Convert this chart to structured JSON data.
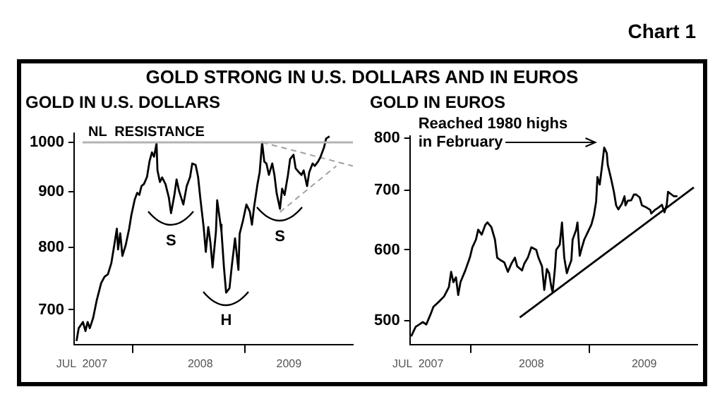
{
  "chart_data": [
    {
      "type": "other",
      "title": "GOLD STRONG IN U.S. DOLLARS AND IN EUROS",
      "annotations": [
        "Chart 1"
      ]
    },
    {
      "type": "line",
      "title": "GOLD IN U.S. DOLLARS",
      "log": "y",
      "marker": "none",
      "xlim": [
        "2007-06-25",
        "2009-12-17"
      ],
      "xticks": [
        {
          "value": "2007-07-20",
          "label": "JUL  2007"
        },
        {
          "value": "2008-01-01",
          "label": null
        },
        {
          "value": "2008-08-08",
          "label": "2008"
        },
        {
          "value": "2009-01-01",
          "label": null
        },
        {
          "value": "2009-05-23",
          "label": "2009"
        }
      ],
      "ylim": [
        650,
        1020
      ],
      "yticks": [
        700,
        800,
        900,
        1000
      ],
      "ref_lines": [
        {
          "axis": "y",
          "value": 1000,
          "label": "NL  RESISTANCE",
          "color": "#b4b4b4"
        }
      ],
      "annotations": [
        {
          "text": "S",
          "x": "2008-05-05",
          "y": 860
        },
        {
          "text": "H",
          "x": "2008-10-31",
          "y": 726
        },
        {
          "text": "S",
          "x": "2009-04-24",
          "y": 868
        }
      ],
      "series": [
        {
          "color": "#000000",
          "x": [
            "2007-07-03",
            "2007-07-10",
            "2007-07-24",
            "2007-08-01",
            "2007-08-08",
            "2007-08-15",
            "2007-08-26",
            "2007-09-06",
            "2007-09-21",
            "2007-10-02",
            "2007-10-13",
            "2007-10-24",
            "2007-11-04",
            "2007-11-11",
            "2007-11-15",
            "2007-11-22",
            "2007-11-29",
            "2007-12-10",
            "2007-12-21",
            "2007-12-28",
            "2008-01-08",
            "2008-01-16",
            "2008-01-23",
            "2008-01-30",
            "2008-02-07",
            "2008-02-17",
            "2008-02-25",
            "2008-03-04",
            "2008-03-11",
            "2008-03-19",
            "2008-03-22",
            "2008-03-30",
            "2008-04-06",
            "2008-04-17",
            "2008-04-28",
            "2008-05-05",
            "2008-05-16",
            "2008-05-23",
            "2008-05-31",
            "2008-06-07",
            "2008-06-14",
            "2008-06-25",
            "2008-07-06",
            "2008-07-13",
            "2008-07-24",
            "2008-08-01",
            "2008-08-08",
            "2008-08-19",
            "2008-08-26",
            "2008-09-03",
            "2008-09-10",
            "2008-09-17",
            "2008-09-28",
            "2008-10-02",
            "2008-10-13",
            "2008-10-16",
            "2008-10-24",
            "2008-10-31",
            "2008-11-11",
            "2008-11-18",
            "2008-11-29",
            "2008-12-10",
            "2008-12-14",
            "2008-12-25",
            "2009-01-05",
            "2009-01-16",
            "2009-01-23",
            "2009-01-30",
            "2009-02-10",
            "2009-02-17",
            "2009-02-25",
            "2009-03-04",
            "2009-03-11",
            "2009-03-19",
            "2009-03-30",
            "2009-04-06",
            "2009-04-13",
            "2009-04-24",
            "2009-05-01",
            "2009-05-09",
            "2009-05-20",
            "2009-05-27",
            "2009-06-07",
            "2009-06-14",
            "2009-06-25",
            "2009-07-03",
            "2009-07-10",
            "2009-07-21",
            "2009-07-28",
            "2009-08-08",
            "2009-08-15",
            "2009-08-26",
            "2009-09-03",
            "2009-09-14",
            "2009-09-21",
            "2009-10-02"
          ],
          "values": [
            655,
            673,
            682,
            669,
            682,
            673,
            688,
            713,
            741,
            751,
            755,
            773,
            808,
            832,
            796,
            824,
            785,
            804,
            832,
            856,
            885,
            898,
            894,
            911,
            915,
            929,
            960,
            979,
            970,
            998,
            942,
            919,
            928,
            915,
            889,
            860,
            894,
            924,
            902,
            889,
            876,
            911,
            929,
            956,
            953,
            929,
            889,
            835,
            792,
            835,
            808,
            766,
            827,
            884,
            839,
            827,
            766,
            726,
            733,
            766,
            815,
            762,
            823,
            847,
            876,
            863,
            839,
            872,
            915,
            938,
            1000,
            960,
            956,
            933,
            956,
            933,
            898,
            868,
            906,
            894,
            933,
            965,
            974,
            946,
            938,
            933,
            942,
            911,
            938,
            956,
            951,
            960,
            970,
            989,
            1008,
            1013
          ]
        },
        {
          "color": "#a0a0a0",
          "line_style": "dashed",
          "x": [
            "2009-02-25",
            "2009-12-17"
          ],
          "values": [
            1000,
            951
          ]
        },
        {
          "color": "#a0a0a0",
          "line_style": "dashed",
          "x": [
            "2009-04-24",
            "2009-10-24"
          ],
          "values": [
            862,
            951
          ]
        }
      ]
    },
    {
      "type": "line",
      "title": "GOLD IN EUROS",
      "log": "y",
      "marker": "none",
      "xlim": [
        "2007-06-25",
        "2009-12-03"
      ],
      "xticks": [
        {
          "value": "2007-07-20",
          "label": "JUL  2007"
        },
        {
          "value": "2008-01-01",
          "label": null
        },
        {
          "value": "2008-07-06",
          "label": "2008"
        },
        {
          "value": "2009-01-01",
          "label": null
        },
        {
          "value": "2009-06-21",
          "label": "2009"
        }
      ],
      "ylim": [
        470,
        805
      ],
      "yticks": [
        500,
        600,
        700,
        800
      ],
      "annotations": [
        {
          "text": "Reached 1980 highs in February",
          "x": "2009-02-17",
          "y": 781
        }
      ],
      "series": [
        {
          "color": "#000000",
          "x": [
            "2007-06-29",
            "2007-07-13",
            "2007-07-24",
            "2007-08-04",
            "2007-08-15",
            "2007-08-30",
            "2007-09-06",
            "2007-09-21",
            "2007-10-09",
            "2007-10-24",
            "2007-10-31",
            "2007-11-07",
            "2007-11-15",
            "2007-11-22",
            "2007-11-29",
            "2007-12-14",
            "2007-12-28",
            "2008-01-05",
            "2008-01-16",
            "2008-01-23",
            "2008-02-03",
            "2008-02-14",
            "2008-02-21",
            "2008-03-04",
            "2008-03-15",
            "2008-03-22",
            "2008-04-02",
            "2008-04-13",
            "2008-04-24",
            "2008-05-05",
            "2008-05-16",
            "2008-05-23",
            "2008-06-07",
            "2008-06-14",
            "2008-06-25",
            "2008-07-06",
            "2008-07-21",
            "2008-07-28",
            "2008-08-08",
            "2008-08-15",
            "2008-08-23",
            "2008-08-30",
            "2008-09-06",
            "2008-09-10",
            "2008-09-17",
            "2008-09-21",
            "2008-10-02",
            "2008-10-09",
            "2008-10-16",
            "2008-10-24",
            "2008-10-31",
            "2008-11-07",
            "2008-11-11",
            "2008-11-22",
            "2008-11-26",
            "2008-12-03",
            "2008-12-10",
            "2008-12-17",
            "2008-12-28",
            "2009-01-08",
            "2009-01-16",
            "2009-01-23",
            "2009-01-27",
            "2009-02-03",
            "2009-02-10",
            "2009-02-17",
            "2009-02-25",
            "2009-02-28",
            "2009-03-11",
            "2009-03-19",
            "2009-03-26",
            "2009-04-02",
            "2009-04-13",
            "2009-04-21",
            "2009-04-24",
            "2009-05-01",
            "2009-05-12",
            "2009-05-20",
            "2009-05-27",
            "2009-06-07",
            "2009-06-14",
            "2009-06-29",
            "2009-07-10",
            "2009-07-13",
            "2009-07-24",
            "2009-08-04",
            "2009-08-15",
            "2009-08-23",
            "2009-08-30",
            "2009-09-03",
            "2009-09-14",
            "2009-09-21",
            "2009-10-02"
          ],
          "values": [
            480,
            492,
            495,
            498,
            495,
            510,
            518,
            524,
            532,
            545,
            567,
            552,
            559,
            534,
            552,
            569,
            588,
            604,
            616,
            632,
            624,
            640,
            644,
            636,
            616,
            588,
            584,
            581,
            567,
            579,
            588,
            575,
            569,
            579,
            588,
            604,
            600,
            588,
            575,
            541,
            571,
            565,
            545,
            538,
            571,
            600,
            608,
            644,
            588,
            565,
            575,
            584,
            616,
            632,
            644,
            591,
            604,
            616,
            628,
            640,
            656,
            680,
            724,
            710,
            743,
            781,
            770,
            747,
            719,
            697,
            673,
            666,
            676,
            689,
            673,
            681,
            682,
            692,
            692,
            687,
            673,
            669,
            665,
            659,
            665,
            669,
            674,
            661,
            674,
            697,
            692,
            689,
            689
          ]
        },
        {
          "color": "#000000",
          "x": [
            "2008-05-31",
            "2009-11-22"
          ],
          "values": [
            504,
            705
          ]
        }
      ]
    }
  ]
}
